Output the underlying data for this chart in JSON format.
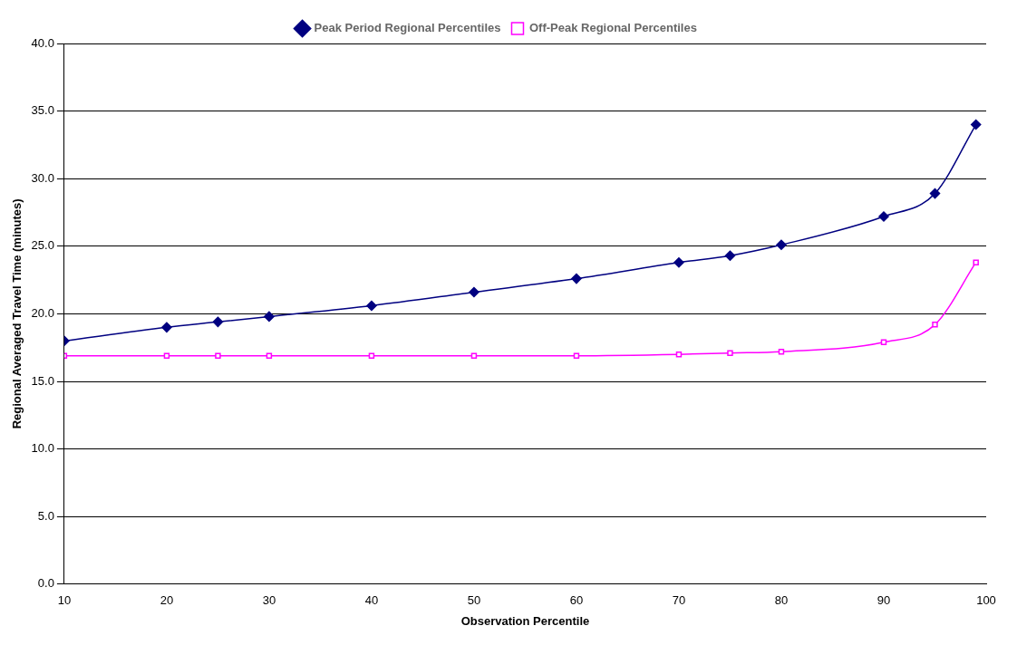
{
  "chart_data": {
    "type": "line",
    "xlabel": "Observation Percentile",
    "ylabel": "Regional Averaged Travel Time (minutes)",
    "x": [
      10,
      20,
      25,
      30,
      40,
      50,
      60,
      70,
      75,
      80,
      90,
      95,
      99
    ],
    "series": [
      {
        "name": "Peak Period Regional Percentiles",
        "color": "#000080",
        "marker": "diamond",
        "values": [
          18.0,
          19.0,
          19.4,
          19.8,
          20.6,
          21.6,
          22.6,
          23.8,
          24.3,
          25.1,
          27.2,
          28.9,
          34.0
        ]
      },
      {
        "name": "Off-Peak Regional Percentiles",
        "color": "#ff00ff",
        "marker": "square",
        "values": [
          16.9,
          16.9,
          16.9,
          16.9,
          16.9,
          16.9,
          16.9,
          17.0,
          17.1,
          17.2,
          17.9,
          19.2,
          23.8
        ]
      }
    ],
    "xlim": [
      10,
      100
    ],
    "xticks": [
      10,
      20,
      30,
      40,
      50,
      60,
      70,
      80,
      90,
      100
    ],
    "ylim": [
      0,
      40
    ],
    "yticks": [
      {
        "value": 0,
        "label": "0.0"
      },
      {
        "value": 5,
        "label": "5.0"
      },
      {
        "value": 10,
        "label": "10.0"
      },
      {
        "value": 15,
        "label": "15.0"
      },
      {
        "value": 20,
        "label": "20.0"
      },
      {
        "value": 25,
        "label": "25.0"
      },
      {
        "value": 30,
        "label": "30.0"
      },
      {
        "value": 35,
        "label": "35.0"
      },
      {
        "value": 40,
        "label": "40.0"
      }
    ],
    "grid": "y",
    "legend": "top"
  }
}
